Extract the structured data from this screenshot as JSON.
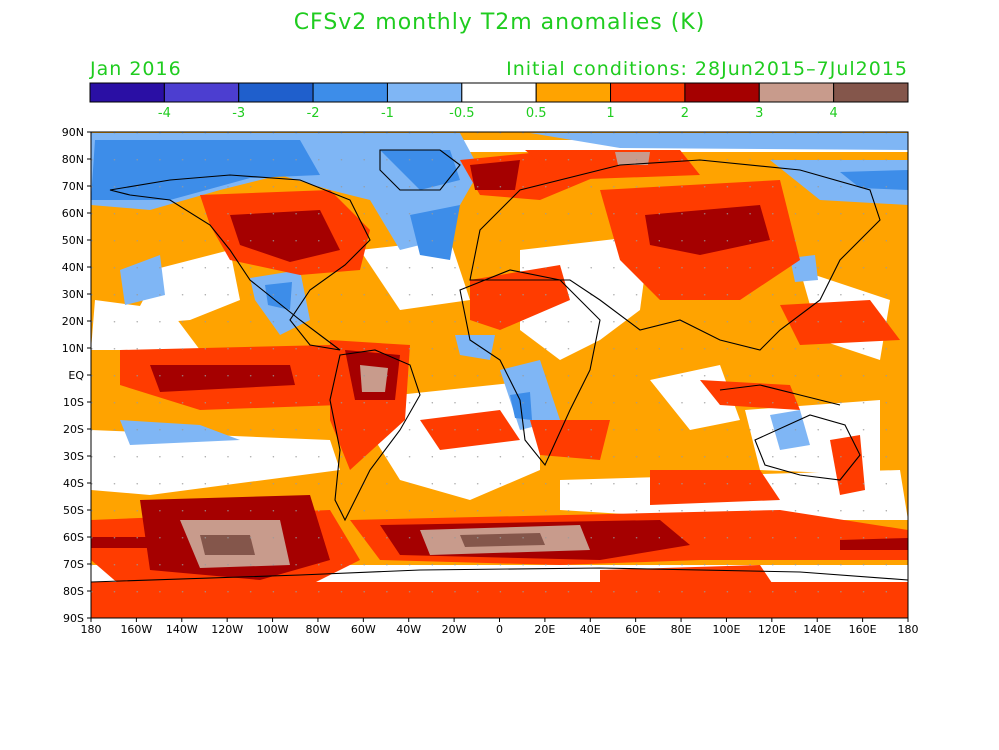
{
  "title": "CFSv2 monthly T2m anomalies (K)",
  "valid_month": "Jan 2016",
  "initial_conditions": "Initial conditions: 28Jun2015–7Jul2015",
  "colors": {
    "text_green": "#1fcc1f",
    "land_outline": "#000000"
  },
  "legend": {
    "bins": [
      {
        "color": "#2a0fa4"
      },
      {
        "color": "#4c3ed0"
      },
      {
        "color": "#1f5fcc"
      },
      {
        "color": "#3d8de9"
      },
      {
        "color": "#7fb6f5"
      },
      {
        "color": "#ffffff"
      },
      {
        "color": "#ffa300"
      },
      {
        "color": "#ff3c00"
      },
      {
        "color": "#a50000"
      },
      {
        "color": "#c89b8c"
      },
      {
        "color": "#84564b"
      }
    ],
    "ticks": [
      "-4",
      "-3",
      "-2",
      "-1",
      "-0.5",
      "0.5",
      "1",
      "2",
      "3",
      "4"
    ]
  },
  "axes": {
    "lon_labels": [
      "180",
      "160W",
      "140W",
      "120W",
      "100W",
      "80W",
      "60W",
      "40W",
      "20W",
      "0",
      "20E",
      "40E",
      "60E",
      "80E",
      "100E",
      "120E",
      "140E",
      "160E",
      "180"
    ],
    "lat_labels": [
      "90N",
      "80N",
      "70N",
      "60N",
      "50N",
      "40N",
      "30N",
      "20N",
      "10N",
      "EQ",
      "10S",
      "20S",
      "30S",
      "40S",
      "50S",
      "60S",
      "70S",
      "80S",
      "90S"
    ]
  }
}
